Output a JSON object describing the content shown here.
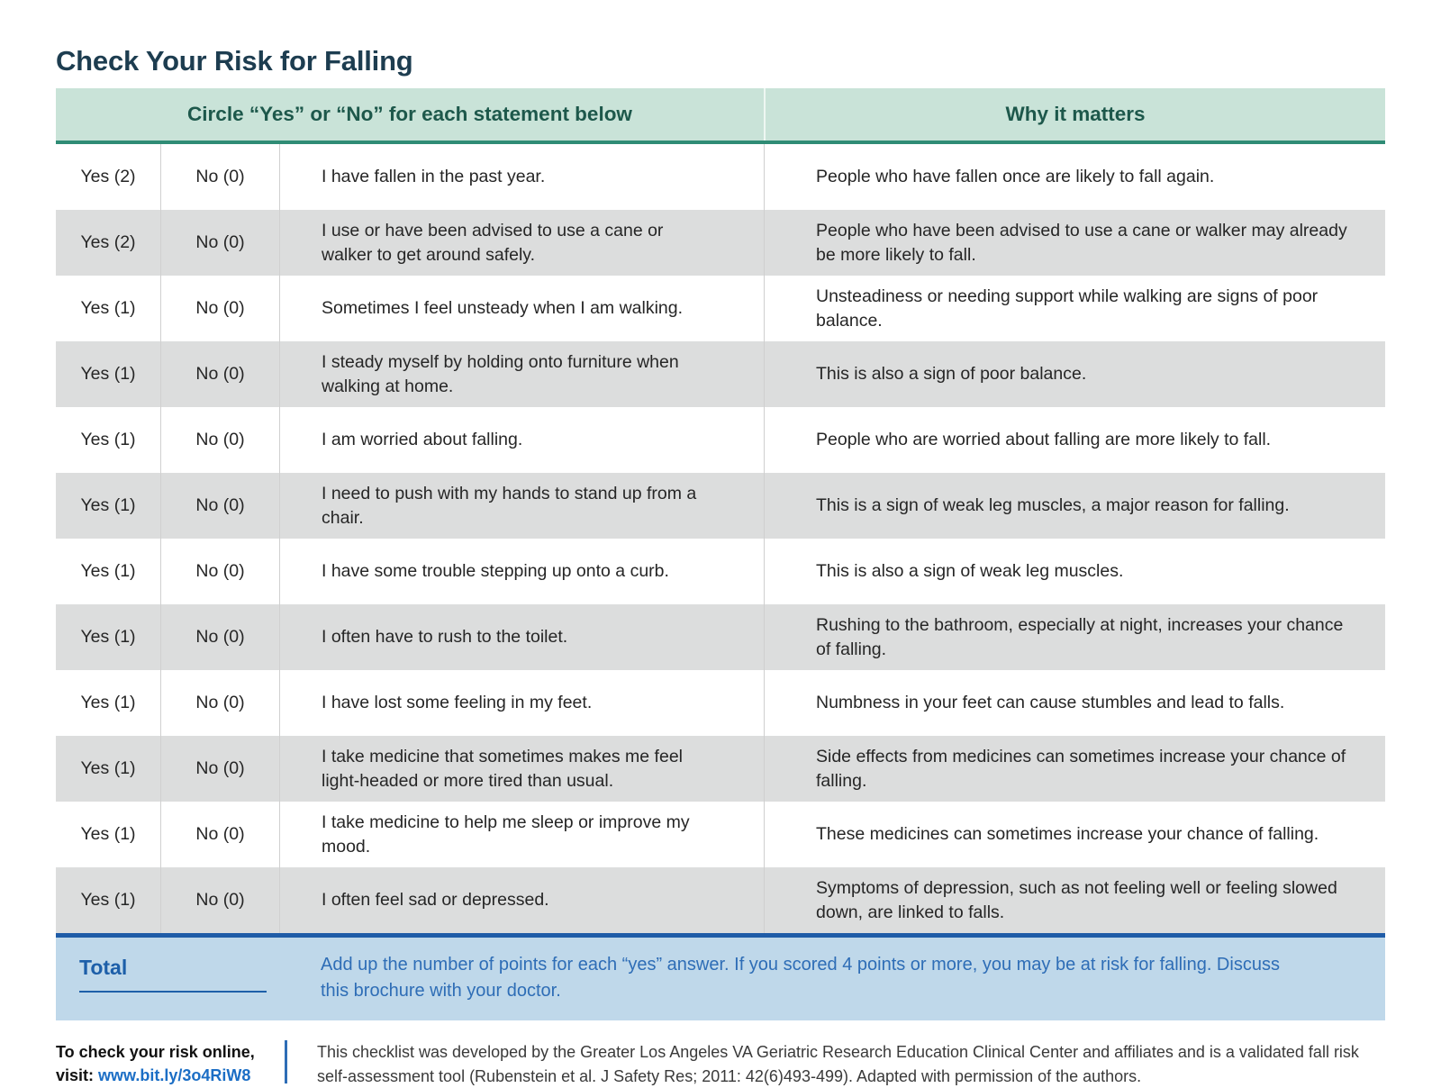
{
  "page": {
    "title": "Check Your Risk for Falling"
  },
  "table": {
    "header": {
      "left": "Circle “Yes” or “No” for each statement below",
      "right": "Why it matters"
    },
    "rows": [
      {
        "yes": "Yes (2)",
        "no": "No (0)",
        "statement": "I have fallen in the past year.",
        "why": "People who have fallen once are likely to fall again."
      },
      {
        "yes": "Yes (2)",
        "no": "No (0)",
        "statement": "I use or have been advised to use a cane or walker to get around safely.",
        "why": "People who have been advised to use a cane or walker may already be more likely to fall."
      },
      {
        "yes": "Yes (1)",
        "no": "No (0)",
        "statement": "Sometimes I feel unsteady when I am walking.",
        "why": "Unsteadiness or needing support while walking are signs of poor balance."
      },
      {
        "yes": "Yes (1)",
        "no": "No (0)",
        "statement": "I steady myself by holding onto furniture when walking at home.",
        "why": "This is also a sign of poor balance."
      },
      {
        "yes": "Yes (1)",
        "no": "No (0)",
        "statement": "I am worried about falling.",
        "why": "People who are worried about falling are more likely to fall."
      },
      {
        "yes": "Yes (1)",
        "no": "No (0)",
        "statement": "I need to push with my hands to stand up from a chair.",
        "why": "This is a sign of weak leg muscles, a major reason for falling."
      },
      {
        "yes": "Yes (1)",
        "no": "No (0)",
        "statement": "I have some trouble stepping up onto a curb.",
        "why": "This is also a sign of weak leg muscles."
      },
      {
        "yes": "Yes (1)",
        "no": "No (0)",
        "statement": "I often have to rush to the toilet.",
        "why": "Rushing to the bathroom, especially at night, increases your chance of falling."
      },
      {
        "yes": "Yes (1)",
        "no": "No (0)",
        "statement": "I have lost some feeling in my feet.",
        "why": "Numbness in your feet can cause stumbles and lead to falls."
      },
      {
        "yes": "Yes (1)",
        "no": "No (0)",
        "statement": "I take medicine that sometimes makes me feel light-headed or more tired than usual.",
        "why": "Side effects from medicines can sometimes increase your chance of falling."
      },
      {
        "yes": "Yes (1)",
        "no": "No (0)",
        "statement": "I take medicine to help me sleep or improve my mood.",
        "why": "These medicines can sometimes increase your chance of falling."
      },
      {
        "yes": "Yes (1)",
        "no": "No (0)",
        "statement": "I often feel sad or depressed.",
        "why": "Symptoms of depression, such as not feeling well or feeling slowed down, are linked to falls."
      }
    ]
  },
  "total": {
    "label": "Total",
    "instructions": "Add up the number of points for each “yes” answer. If you scored 4 points or more, you may be at risk for falling. Discuss this brochure with your doctor."
  },
  "footer": {
    "online_prefix": "To check your risk online,",
    "visit_label": "visit: ",
    "link": "www.bit.ly/3o4RiW8",
    "credit": "This checklist was developed by the Greater Los Angeles VA Geriatric Research Education Clinical Center and affiliates and is a validated fall risk self-assessment tool (Rubenstein et al. J Safety Res; 2011: 42(6)493-499). Adapted with permission of the authors."
  },
  "colors": {
    "title_text": "#1d3d50",
    "header_band": "#c9e3d8",
    "header_text": "#1d584b",
    "teal_rule": "#2f8c75",
    "row_alt": "#dcdddd",
    "total_bg": "#bfd8ea",
    "total_border": "#1f5ca7",
    "total_text": "#2e6db6",
    "link_blue": "#1b6ec5"
  }
}
